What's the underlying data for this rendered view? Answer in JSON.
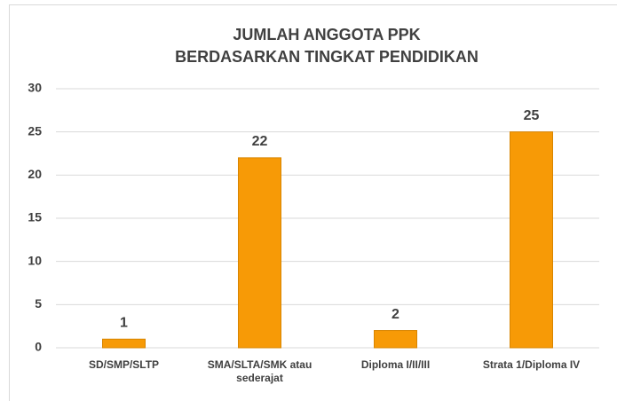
{
  "chart_data": {
    "type": "bar",
    "title": [
      "JUMLAH ANGGOTA PPK",
      "BERDASARKAN TINGKAT PENDIDIKAN"
    ],
    "categories": [
      "SD/SMP/SLTP",
      "SMA/SLTA/SMK atau sederajat",
      "Diploma I/II/III",
      "Strata 1/Diploma IV"
    ],
    "values": [
      1,
      22,
      2,
      25
    ],
    "color": "#f79a06",
    "ylim": [
      0,
      30
    ],
    "yticks": [
      0,
      5,
      10,
      15,
      20,
      25,
      30
    ],
    "grid": true
  }
}
